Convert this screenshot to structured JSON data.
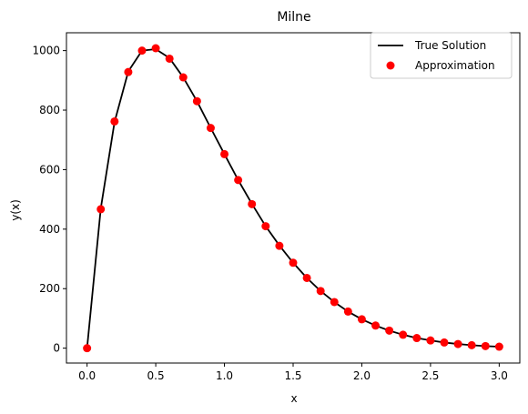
{
  "chart_data": {
    "type": "line",
    "title": "Milne",
    "xlabel": "x",
    "ylabel": "y(x)",
    "xlim": [
      -0.15,
      3.15
    ],
    "ylim": [
      -50,
      1060
    ],
    "xticks": [
      0.0,
      0.5,
      1.0,
      1.5,
      2.0,
      2.5,
      3.0
    ],
    "xtick_labels": [
      "0.0",
      "0.5",
      "1.0",
      "1.5",
      "2.0",
      "2.5",
      "3.0"
    ],
    "yticks": [
      0,
      200,
      400,
      600,
      800,
      1000
    ],
    "ytick_labels": [
      "0",
      "200",
      "400",
      "600",
      "800",
      "1000"
    ],
    "grid": false,
    "legend_position": "top-right",
    "series": [
      {
        "name": "True Solution",
        "style": "line",
        "color": "#000000",
        "x": [
          0.0,
          0.1,
          0.2,
          0.3,
          0.4,
          0.5,
          0.6,
          0.7,
          0.8,
          0.9,
          1.0,
          1.1,
          1.2,
          1.3,
          1.4,
          1.5,
          1.6,
          1.7,
          1.8,
          1.9,
          2.0,
          2.1,
          2.2,
          2.3,
          2.4,
          2.5,
          2.6,
          2.7,
          2.8,
          2.9,
          3.0
        ],
        "y": [
          0,
          470,
          760,
          930,
          1000,
          1005,
          975,
          910,
          830,
          740,
          652,
          565,
          485,
          410,
          345,
          287,
          236,
          192,
          155,
          123,
          97,
          76,
          59,
          45,
          34,
          26,
          19,
          14,
          10,
          7,
          5
        ]
      },
      {
        "name": "Approximation",
        "style": "markers",
        "color": "#ff0000",
        "x": [
          0.0,
          0.1,
          0.2,
          0.3,
          0.4,
          0.5,
          0.6,
          0.7,
          0.8,
          0.9,
          1.0,
          1.1,
          1.2,
          1.3,
          1.4,
          1.5,
          1.6,
          1.7,
          1.8,
          1.9,
          2.0,
          2.1,
          2.2,
          2.3,
          2.4,
          2.5,
          2.6,
          2.7,
          2.8,
          2.9,
          3.0
        ],
        "y": [
          0,
          467,
          762,
          928,
          1000,
          1008,
          973,
          910,
          830,
          740,
          652,
          565,
          484,
          410,
          344,
          287,
          236,
          192,
          155,
          123,
          97,
          76,
          59,
          45,
          34,
          26,
          19,
          14,
          10,
          7,
          5
        ]
      }
    ]
  }
}
